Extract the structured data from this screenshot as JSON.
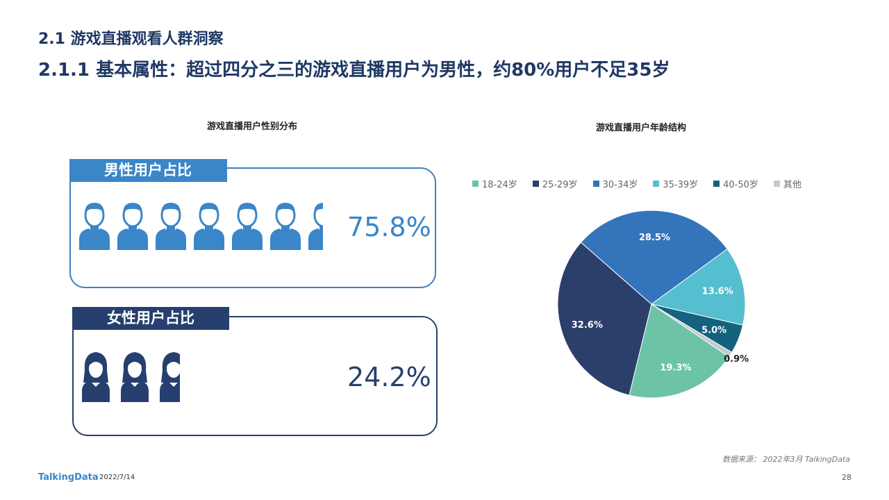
{
  "header": {
    "section_title": "2.1 游戏直播观看人群洞察",
    "main_title": "2.1.1 基本属性：超过四分之三的游戏直播用户为男性，约80%用户不足35岁"
  },
  "gender": {
    "title": "游戏直播用户性别分布",
    "male": {
      "label": "男性用户占比",
      "value_text": "75.8%",
      "value": 75.8,
      "color": "#3a86c8"
    },
    "female": {
      "label": "女性用户占比",
      "value_text": "24.2%",
      "value": 24.2,
      "color": "#263f6e"
    }
  },
  "chart_data": {
    "type": "pie",
    "title": "游戏直播用户年龄结构",
    "legend_position": "top",
    "categories": [
      "18-24岁",
      "25-29岁",
      "30-34岁",
      "35-39岁",
      "40-50岁",
      "其他"
    ],
    "values": [
      19.3,
      32.6,
      28.5,
      13.6,
      5.0,
      0.9
    ],
    "labels": [
      "19.3%",
      "32.6%",
      "28.5%",
      "13.6%",
      "5.0%",
      "0.9%"
    ],
    "colors": [
      "#6cc3a8",
      "#2b3f6b",
      "#3374bb",
      "#55bfcf",
      "#14627e",
      "#c7c9cc"
    ]
  },
  "source": "数据来源：   2022年3月 TalkingData",
  "footer": {
    "brand": "TalkingData",
    "date": "2022/7/14",
    "page": "28"
  }
}
